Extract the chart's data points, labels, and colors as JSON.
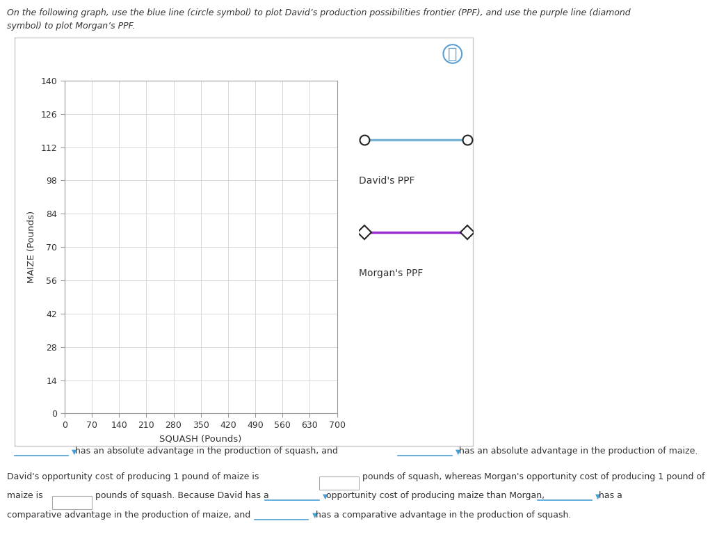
{
  "title": "",
  "xlabel": "SQUASH (Pounds)",
  "ylabel": "MAIZE (Pounds)",
  "x_ticks": [
    0,
    70,
    140,
    210,
    280,
    350,
    420,
    490,
    560,
    630,
    700
  ],
  "y_ticks": [
    0,
    14,
    28,
    42,
    56,
    70,
    84,
    98,
    112,
    126,
    140
  ],
  "xlim": [
    0,
    700
  ],
  "ylim": [
    0,
    140
  ],
  "grid_color": "#d8d8d8",
  "axis_color": "#aaaaaa",
  "david_color": "#7ab3d4",
  "morgan_color": "#9b30d0",
  "david_label": "David's PPF",
  "morgan_label": "Morgan's PPF",
  "background_color": "#ffffff",
  "box_border_color": "#c8c8c8",
  "fig_background": "#ffffff",
  "tick_label_fontsize": 9,
  "axis_label_fontsize": 9.5,
  "legend_fontsize": 10,
  "instruction_text": "On the following graph, use the blue line (circle symbol) to plot David’s production possibilities frontier (PPF), and use the purple line (diamond symbol) to plot Morgan’s PPF.",
  "question_icon_color": "#5a9fd4",
  "dropdown_underline_color": "#4a9fd4",
  "text_color": "#333333"
}
